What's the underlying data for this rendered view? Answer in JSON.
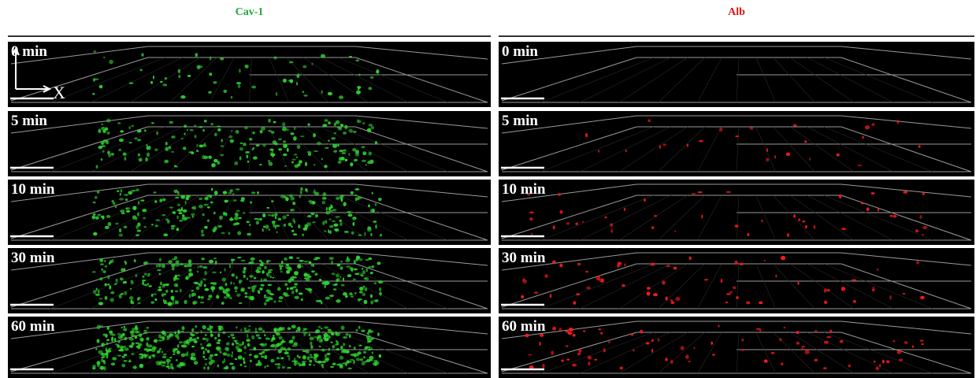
{
  "columns": [
    {
      "title": "Cav-1",
      "panels": [
        "0 min",
        "5 min",
        "10 min",
        "30 min",
        "60 min"
      ]
    },
    {
      "title": "Alb",
      "panels": [
        "0 min",
        "5 min",
        "10 min",
        "30 min",
        "60 min"
      ]
    }
  ],
  "axis_label": "X"
}
